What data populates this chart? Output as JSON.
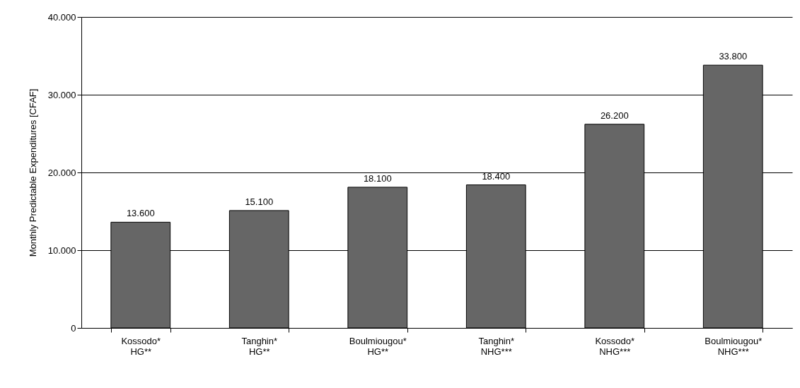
{
  "chart_data": {
    "type": "bar",
    "ylabel": "Monthly Predictable Expenditures [CFAF]",
    "categories": [
      "Kossodo*\nHG**",
      "Tanghin*\nHG**",
      "Boulmiougou*\nHG**",
      "Tanghin*\nNHG***",
      "Kossodo*\nNHG***",
      "Boulmiougou*\nNHG***"
    ],
    "values": [
      13600,
      15100,
      18100,
      18400,
      26200,
      33800
    ],
    "value_labels": [
      "13.600",
      "15.100",
      "18.100",
      "18.400",
      "26.200",
      "33.800"
    ],
    "color": "#666666",
    "ylim": [
      0,
      40000
    ],
    "yticks": [
      0,
      {
        "value": 10000,
        "label": "10.000"
      },
      {
        "value": 20000,
        "label": "20.000"
      },
      {
        "value": 30000,
        "label": "30.000"
      },
      {
        "value": 40000,
        "label": "40.000"
      }
    ],
    "grid": "y"
  }
}
